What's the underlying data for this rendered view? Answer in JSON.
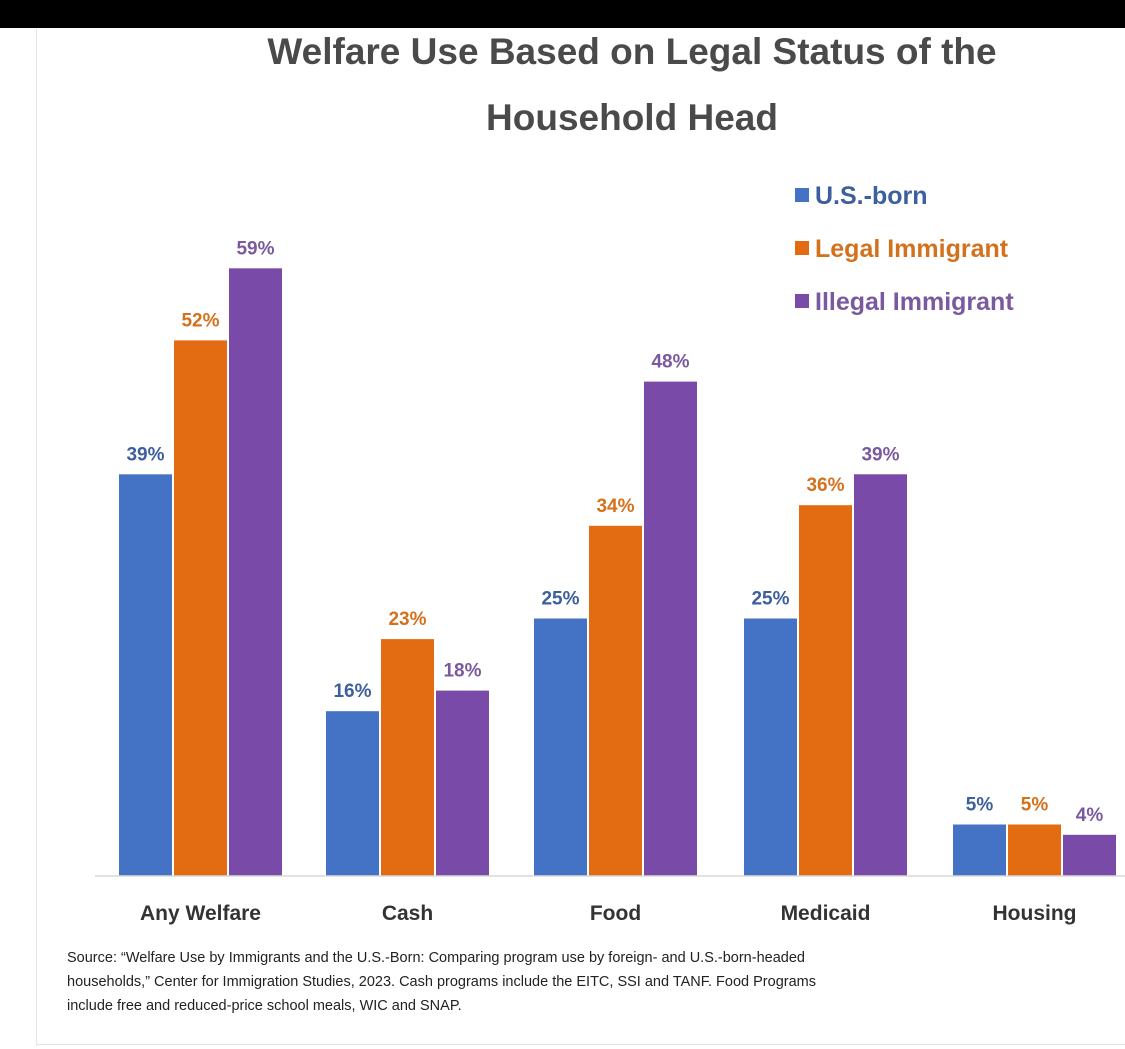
{
  "chart_data": {
    "type": "bar",
    "title_lines": [
      "Welfare Use Based on Legal Status of the",
      "Household Head"
    ],
    "categories": [
      "Any Welfare",
      "Cash",
      "Food",
      "Medicaid",
      "Housing"
    ],
    "series": [
      {
        "name": "U.S.-born",
        "color": "#4472c4",
        "label_color": "#3d5f9e",
        "values": [
          39,
          16,
          25,
          25,
          5
        ]
      },
      {
        "name": "Legal Immigrant",
        "color": "#e36c12",
        "label_color": "#d4711d",
        "values": [
          52,
          23,
          34,
          36,
          5
        ]
      },
      {
        "name": "Illegal Immigrant",
        "color": "#7a4aa8",
        "label_color": "#7a5a9e",
        "values": [
          59,
          18,
          48,
          39,
          4
        ]
      }
    ],
    "value_suffix": "%",
    "ylim": [
      0,
      65
    ],
    "grid": false,
    "legend_position": "top-right",
    "source_lines": [
      "Source: “Welfare Use by Immigrants and the U.S.-Born: Comparing program use by foreign- and U.S.-born-headed",
      "households,” Center for Immigration Studies, 2023. Cash programs include the EITC, SSI and TANF.  Food Programs",
      "include free and reduced-price school meals, WIC and SNAP."
    ]
  }
}
